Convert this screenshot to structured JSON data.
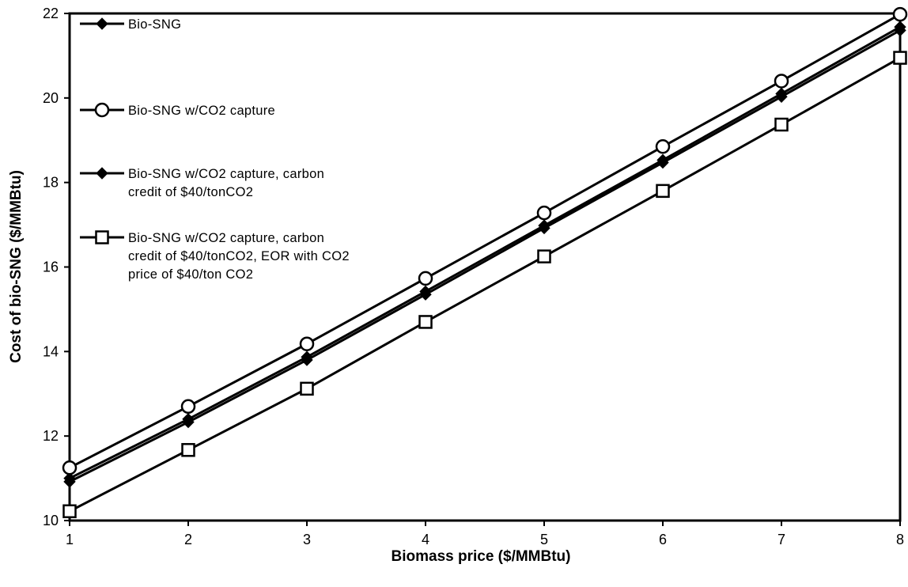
{
  "chart_data": {
    "type": "line",
    "title": "",
    "xlabel": "Biomass price ($/MMBtu)",
    "ylabel": "Cost of bio-SNG ($/MMBtu)",
    "x": [
      1,
      2,
      3,
      4,
      5,
      6,
      7,
      8
    ],
    "xlim": [
      1,
      8
    ],
    "ylim": [
      10,
      22
    ],
    "xticks": [
      "1",
      "2",
      "3",
      "4",
      "5",
      "6",
      "7",
      "8"
    ],
    "yticks": [
      "10",
      "12",
      "14",
      "16",
      "18",
      "20",
      "22"
    ],
    "grid": false,
    "legend_position": "top-left",
    "series": [
      {
        "name": "Bio-SNG",
        "marker": "diamond-filled",
        "color": "#000000",
        "values": [
          11.0,
          12.4,
          13.87,
          15.42,
          16.98,
          18.53,
          20.1,
          21.68
        ],
        "legend_lines": [
          "Bio-SNG"
        ]
      },
      {
        "name": "Bio-SNG w/CO2 capture",
        "marker": "circle-open",
        "color": "#000000",
        "values": [
          11.25,
          12.7,
          14.18,
          15.73,
          17.28,
          18.85,
          20.4,
          21.98
        ],
        "legend_lines": [
          "Bio-SNG w/CO2 capture"
        ]
      },
      {
        "name": "Bio-SNG w/CO2 capture, carbon credit of $40/tonCO2",
        "marker": "diamond-filled",
        "color": "#000000",
        "values": [
          10.92,
          12.33,
          13.8,
          15.35,
          16.92,
          18.47,
          20.03,
          21.6
        ],
        "legend_lines": [
          "Bio-SNG w/CO2 capture, carbon",
          "credit of $40/tonCO2"
        ]
      },
      {
        "name": "Bio-SNG w/CO2 capture, carbon credit of $40/tonCO2, EOR with CO2 price of $40/ton CO2",
        "marker": "square-open",
        "color": "#000000",
        "values": [
          10.22,
          11.67,
          13.12,
          14.7,
          16.25,
          17.8,
          19.37,
          20.95
        ],
        "legend_lines": [
          "Bio-SNG w/CO2 capture, carbon",
          "credit of $40/tonCO2, EOR with CO2",
          "price of $40/ton CO2"
        ]
      }
    ]
  }
}
